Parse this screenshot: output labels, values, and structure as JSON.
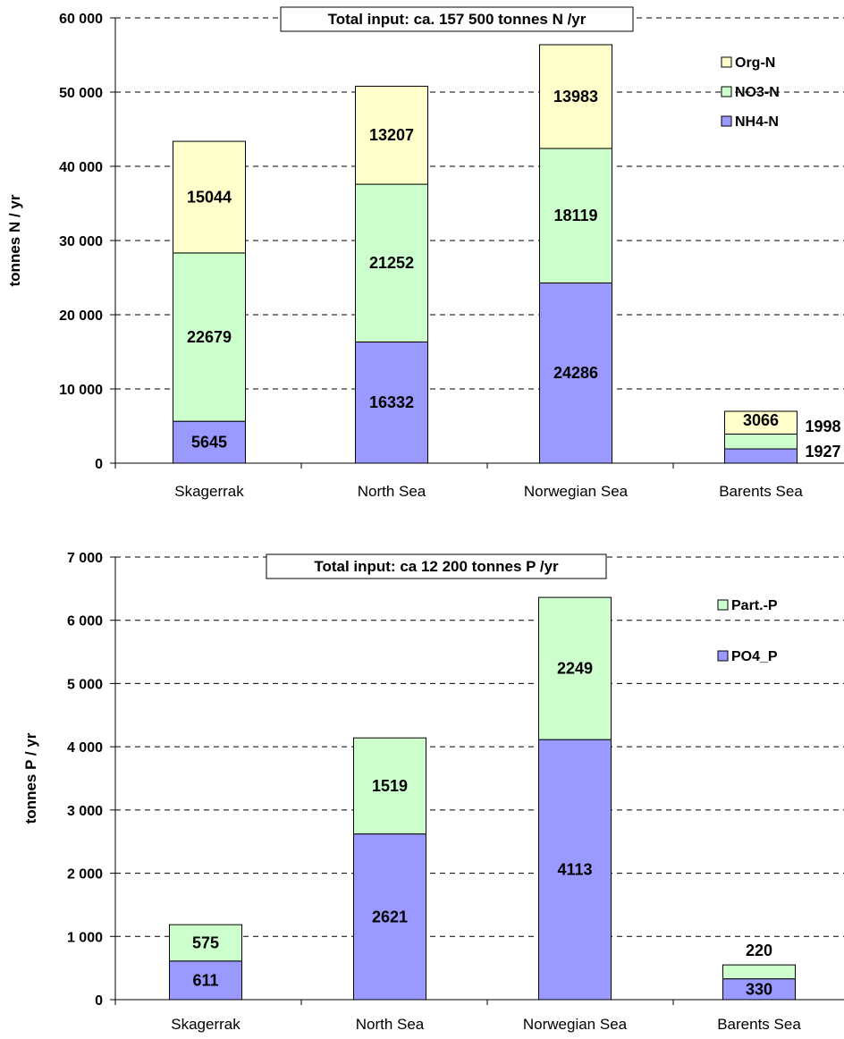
{
  "chart_data": [
    {
      "type": "bar",
      "stacked": true,
      "title": "Total input: ca. 157 500 tonnes N /yr",
      "ylabel": "tonnes N / yr",
      "ylim": [
        0,
        60000
      ],
      "yticks": [
        "0",
        "10 000",
        "20 000",
        "30 000",
        "40 000",
        "50 000",
        "60 000"
      ],
      "categories": [
        "Skagerrak",
        "North Sea",
        "Norwegian Sea",
        "Barents Sea"
      ],
      "grid": true,
      "legend_position": "top-right",
      "series": [
        {
          "name": "NH4-N",
          "color": "#9999ff",
          "values": [
            5645,
            16332,
            24286,
            1927
          ],
          "labels": [
            "5645",
            "16332",
            "24286",
            "1927"
          ]
        },
        {
          "name": "NO3-N",
          "color": "#ccffcc",
          "values": [
            22679,
            21252,
            18119,
            1998
          ],
          "labels": [
            "22679",
            "21252",
            "18119",
            "1998"
          ]
        },
        {
          "name": "Org-N",
          "color": "#ffffcc",
          "values": [
            15044,
            13207,
            13983,
            3066
          ],
          "labels": [
            "15044",
            "13207",
            "13983",
            "3066"
          ]
        }
      ],
      "legend_order": [
        "Org-N",
        "NO3-N",
        "NH4-N"
      ]
    },
    {
      "type": "bar",
      "stacked": true,
      "title": "Total input: ca 12 200 tonnes P /yr",
      "ylabel": "tonnes P / yr",
      "ylim": [
        0,
        7000
      ],
      "yticks": [
        "0",
        "1 000",
        "2 000",
        "3 000",
        "4 000",
        "5 000",
        "6 000",
        "7 000"
      ],
      "categories": [
        "Skagerrak",
        "North Sea",
        "Norwegian Sea",
        "Barents Sea"
      ],
      "grid": true,
      "legend_position": "top-right",
      "series": [
        {
          "name": "PO4_P",
          "color": "#9999ff",
          "values": [
            611,
            2621,
            4113,
            330
          ],
          "labels": [
            "611",
            "2621",
            "4113",
            "330"
          ]
        },
        {
          "name": "Part.-P",
          "color": "#ccffcc",
          "values": [
            575,
            1519,
            2249,
            220
          ],
          "labels": [
            "575",
            "1519",
            "2249",
            "220"
          ]
        }
      ],
      "legend_order": [
        "Part.-P",
        "PO4_P"
      ]
    }
  ]
}
